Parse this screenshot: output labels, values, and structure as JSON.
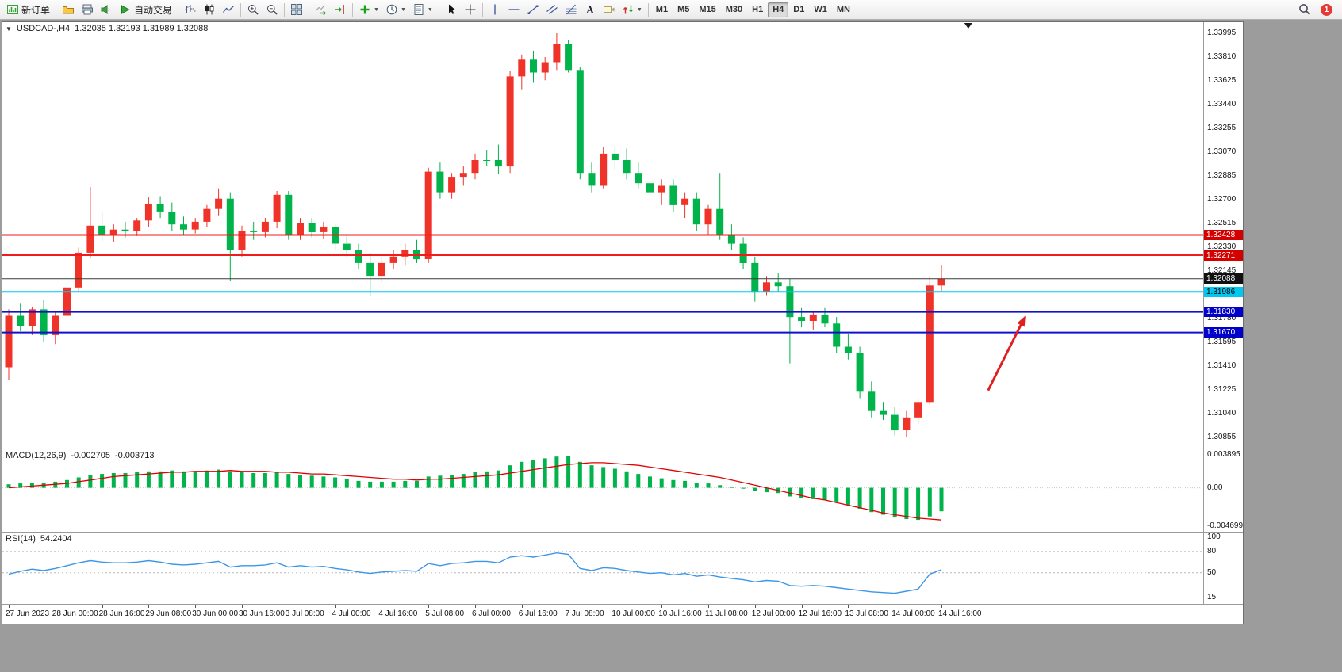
{
  "toolbar": {
    "groups": [
      [
        {
          "name": "new-order",
          "icon": "new_order",
          "label": "新订单"
        }
      ],
      [
        {
          "name": "profiles",
          "icon": "profiles"
        },
        {
          "name": "print",
          "icon": "print"
        },
        {
          "name": "alerts",
          "icon": "alerts"
        },
        {
          "name": "auto-trading",
          "icon": "auto_trading",
          "label": "自动交易"
        }
      ],
      [
        {
          "name": "bar-chart-mode",
          "icon": "bars"
        },
        {
          "name": "candlestick-mode",
          "icon": "candles"
        },
        {
          "name": "line-chart-mode",
          "icon": "linechart"
        }
      ],
      [
        {
          "name": "zoom-in",
          "icon": "zoom_in"
        },
        {
          "name": "zoom-out",
          "icon": "zoom_out"
        }
      ],
      [
        {
          "name": "tile-windows",
          "icon": "tile"
        }
      ],
      [
        {
          "name": "auto-scroll",
          "icon": "auto_scroll"
        },
        {
          "name": "chart-shift",
          "icon": "chart_shift"
        }
      ],
      [
        {
          "name": "indicators",
          "icon": "indicators",
          "dropdown": true
        },
        {
          "name": "periods",
          "icon": "clock",
          "dropdown": true
        },
        {
          "name": "templates",
          "icon": "template",
          "dropdown": true
        }
      ],
      [
        {
          "name": "cursor",
          "icon": "cursor"
        },
        {
          "name": "crosshair",
          "icon": "crosshair"
        }
      ],
      [
        {
          "name": "vertical-line",
          "icon": "vline"
        },
        {
          "name": "horizontal-line",
          "icon": "hline"
        },
        {
          "name": "trendline",
          "icon": "trendline"
        },
        {
          "name": "equidistant-channel",
          "icon": "channel"
        },
        {
          "name": "fibonacci",
          "icon": "fibo"
        },
        {
          "name": "text",
          "icon": "text"
        },
        {
          "name": "text-label",
          "icon": "label_icon"
        },
        {
          "name": "arrow-objects",
          "icon": "arrows",
          "dropdown": true
        }
      ]
    ],
    "timeframes": [
      "M1",
      "M5",
      "M15",
      "M30",
      "H1",
      "H4",
      "D1",
      "W1",
      "MN"
    ],
    "active_timeframe": "H4",
    "notification_badge": "1"
  },
  "chart": {
    "symbol_period": "USDCAD-,H4",
    "ohlc": "1.32035 1.32193 1.31989 1.32088"
  },
  "indicators": {
    "macd": {
      "name": "MACD(12,26,9)",
      "value_main": "-0.002705",
      "value_signal": "-0.003713"
    },
    "rsi": {
      "name": "RSI(14)",
      "value": "54.2404"
    }
  },
  "chart_data": {
    "type": "candlestick",
    "symbol": "USDCAD-",
    "timeframe": "H4",
    "current_bar": {
      "open": 1.32035,
      "high": 1.32193,
      "low": 1.31989,
      "close": 1.32088
    },
    "colors": {
      "up": "#f03328",
      "down": "#00b34a",
      "macd_hist": "#00b34a",
      "macd_signal": "#e00000",
      "rsi": "#3c96e8",
      "bid": "#3a3a3a",
      "resistance": "#ee1c1c",
      "support": "#1010d0",
      "pivot": "#00c8f0"
    },
    "price_axis": [
      "1.33995",
      "1.33810",
      "1.33625",
      "1.33440",
      "1.33255",
      "1.33070",
      "1.32885",
      "1.32700",
      "1.32515",
      "1.32330",
      "1.32145",
      "1.31960",
      "1.31780",
      "1.31595",
      "1.31410",
      "1.31225",
      "1.31040",
      "1.30855"
    ],
    "time_axis": [
      "27 Jun 2023",
      "28 Jun 00:00",
      "28 Jun 16:00",
      "29 Jun 08:00",
      "30 Jun 00:00",
      "30 Jun 16:00",
      "3 Jul 08:00",
      "4 Jul 00:00",
      "4 Jul 16:00",
      "5 Jul 08:00",
      "6 Jul 00:00",
      "6 Jul 16:00",
      "7 Jul 08:00",
      "10 Jul 00:00",
      "10 Jul 16:00",
      "11 Jul 08:00",
      "12 Jul 00:00",
      "12 Jul 16:00",
      "13 Jul 08:00",
      "14 Jul 00:00",
      "14 Jul 16:00"
    ],
    "candles": [
      [
        1.314,
        1.3185,
        1.313,
        1.318
      ],
      [
        1.318,
        1.319,
        1.3168,
        1.3172
      ],
      [
        1.3172,
        1.3187,
        1.3165,
        1.3185
      ],
      [
        1.3185,
        1.3192,
        1.316,
        1.3165
      ],
      [
        1.3165,
        1.3183,
        1.3158,
        1.318
      ],
      [
        1.318,
        1.3206,
        1.3178,
        1.3202
      ],
      [
        1.3202,
        1.3233,
        1.3199,
        1.3229
      ],
      [
        1.3229,
        1.328,
        1.3225,
        1.325
      ],
      [
        1.325,
        1.326,
        1.3238,
        1.3243
      ],
      [
        1.3243,
        1.3251,
        1.3237,
        1.3247
      ],
      [
        1.3247,
        1.3253,
        1.3241,
        1.3246
      ],
      [
        1.3246,
        1.3256,
        1.3242,
        1.3254
      ],
      [
        1.3254,
        1.3272,
        1.3249,
        1.3267
      ],
      [
        1.3267,
        1.3273,
        1.3256,
        1.3261
      ],
      [
        1.3261,
        1.3268,
        1.3246,
        1.3251
      ],
      [
        1.3251,
        1.3257,
        1.3243,
        1.3247
      ],
      [
        1.3247,
        1.3256,
        1.3244,
        1.3253
      ],
      [
        1.3253,
        1.3266,
        1.3249,
        1.3263
      ],
      [
        1.3263,
        1.3279,
        1.3258,
        1.3271
      ],
      [
        1.3271,
        1.3276,
        1.3207,
        1.3231
      ],
      [
        1.3231,
        1.325,
        1.3226,
        1.3246
      ],
      [
        1.3246,
        1.3253,
        1.3239,
        1.3245
      ],
      [
        1.3245,
        1.3256,
        1.3241,
        1.3253
      ],
      [
        1.3253,
        1.3277,
        1.3248,
        1.3274
      ],
      [
        1.3274,
        1.3277,
        1.3239,
        1.3243
      ],
      [
        1.3243,
        1.3256,
        1.3239,
        1.3252
      ],
      [
        1.3252,
        1.3256,
        1.3241,
        1.3245
      ],
      [
        1.3245,
        1.3253,
        1.324,
        1.3249
      ],
      [
        1.3249,
        1.3251,
        1.3231,
        1.3236
      ],
      [
        1.3236,
        1.3243,
        1.3226,
        1.3231
      ],
      [
        1.3231,
        1.3236,
        1.3216,
        1.3221
      ],
      [
        1.3221,
        1.3229,
        1.3195,
        1.3211
      ],
      [
        1.3211,
        1.3226,
        1.3206,
        1.3221
      ],
      [
        1.3221,
        1.3231,
        1.3216,
        1.3226
      ],
      [
        1.3226,
        1.3236,
        1.3219,
        1.3231
      ],
      [
        1.3231,
        1.3239,
        1.3221,
        1.3224
      ],
      [
        1.3224,
        1.3295,
        1.3221,
        1.3292
      ],
      [
        1.3292,
        1.3299,
        1.3271,
        1.3276
      ],
      [
        1.3276,
        1.3291,
        1.3271,
        1.3288
      ],
      [
        1.3288,
        1.3296,
        1.3281,
        1.3291
      ],
      [
        1.3291,
        1.3306,
        1.3286,
        1.3301
      ],
      [
        1.3301,
        1.3309,
        1.3296,
        1.3301
      ],
      [
        1.3301,
        1.3313,
        1.329,
        1.3296
      ],
      [
        1.3296,
        1.337,
        1.3291,
        1.3366
      ],
      [
        1.3366,
        1.3383,
        1.3356,
        1.3379
      ],
      [
        1.3379,
        1.3386,
        1.3361,
        1.3369
      ],
      [
        1.3369,
        1.3381,
        1.3363,
        1.3377
      ],
      [
        1.3377,
        1.33995,
        1.3371,
        1.3391
      ],
      [
        1.3391,
        1.3394,
        1.3369,
        1.3371
      ],
      [
        1.3371,
        1.3373,
        1.3286,
        1.3291
      ],
      [
        1.3291,
        1.3299,
        1.3276,
        1.3281
      ],
      [
        1.3281,
        1.3311,
        1.3279,
        1.3306
      ],
      [
        1.3306,
        1.3311,
        1.3293,
        1.3301
      ],
      [
        1.3301,
        1.331,
        1.3286,
        1.3291
      ],
      [
        1.3291,
        1.3299,
        1.3279,
        1.3283
      ],
      [
        1.3283,
        1.3291,
        1.3271,
        1.3276
      ],
      [
        1.3276,
        1.3286,
        1.3266,
        1.3281
      ],
      [
        1.3281,
        1.3286,
        1.3261,
        1.3266
      ],
      [
        1.3266,
        1.3276,
        1.3256,
        1.3271
      ],
      [
        1.3271,
        1.3276,
        1.3246,
        1.3251
      ],
      [
        1.3251,
        1.3266,
        1.3243,
        1.3263
      ],
      [
        1.3263,
        1.3291,
        1.3239,
        1.3243
      ],
      [
        1.3243,
        1.3251,
        1.3231,
        1.3236
      ],
      [
        1.3236,
        1.3241,
        1.3216,
        1.3221
      ],
      [
        1.3221,
        1.3226,
        1.3191,
        1.3199
      ],
      [
        1.3199,
        1.3211,
        1.3196,
        1.3206
      ],
      [
        1.3206,
        1.3213,
        1.3199,
        1.3203
      ],
      [
        1.3203,
        1.3209,
        1.3143,
        1.3179
      ],
      [
        1.3179,
        1.3186,
        1.3171,
        1.3176
      ],
      [
        1.3176,
        1.3183,
        1.3169,
        1.3181
      ],
      [
        1.3181,
        1.3186,
        1.3171,
        1.3174
      ],
      [
        1.3174,
        1.3179,
        1.3151,
        1.3156
      ],
      [
        1.3156,
        1.3166,
        1.3146,
        1.3151
      ],
      [
        1.3151,
        1.3156,
        1.3116,
        1.3121
      ],
      [
        1.3121,
        1.3129,
        1.3101,
        1.3106
      ],
      [
        1.3106,
        1.3113,
        1.3099,
        1.3103
      ],
      [
        1.3103,
        1.3109,
        1.3087,
        1.3091
      ],
      [
        1.3091,
        1.3106,
        1.3086,
        1.3101
      ],
      [
        1.3101,
        1.3116,
        1.3096,
        1.3113
      ],
      [
        1.3113,
        1.3211,
        1.3111,
        1.32035
      ],
      [
        1.32035,
        1.32193,
        1.31989,
        1.32088
      ]
    ],
    "hlines": [
      {
        "price": 1.32428,
        "label": "1.32428",
        "color": "#ee1c1c",
        "width": 2,
        "tag_bg": "#d40000",
        "tag_fg": "#ffffff"
      },
      {
        "price": 1.32271,
        "label": "1.32271",
        "color": "#ee1c1c",
        "width": 2,
        "tag_bg": "#d40000",
        "tag_fg": "#ffffff"
      },
      {
        "price": 1.31986,
        "label": "1.31986",
        "color": "#00c8f0",
        "width": 2,
        "tag_bg": "#00c8f0",
        "tag_fg": "#000000"
      },
      {
        "price": 1.3183,
        "label": "1.31830",
        "color": "#1010d0",
        "width": 2,
        "tag_bg": "#0000c8",
        "tag_fg": "#ffffff"
      },
      {
        "price": 1.3167,
        "label": "1.31670",
        "color": "#1010d0",
        "width": 2,
        "tag_bg": "#0000c8",
        "tag_fg": "#ffffff"
      }
    ],
    "bid": {
      "price": 1.32088,
      "label": "1.32088",
      "tag_bg": "#101010",
      "tag_fg": "#ffffff"
    },
    "arrow": {
      "tail": {
        "index": 84,
        "price": 1.3122
      },
      "head": {
        "index": 87.2,
        "price": 1.318
      },
      "color": "#e01f1f",
      "width": 3
    },
    "shift_marker_index": 82.3,
    "macd": {
      "axis": [
        "0.003895",
        "0.00",
        "-0.004699"
      ],
      "histogram": [
        0.0004,
        0.0005,
        0.0006,
        0.0006,
        0.0007,
        0.0009,
        0.0012,
        0.0015,
        0.0016,
        0.0017,
        0.0017,
        0.0018,
        0.0019,
        0.0019,
        0.002,
        0.0019,
        0.0019,
        0.002,
        0.0021,
        0.0019,
        0.0018,
        0.0017,
        0.0017,
        0.0018,
        0.0016,
        0.0015,
        0.0014,
        0.0013,
        0.0012,
        0.001,
        0.0008,
        0.0007,
        0.0007,
        0.0007,
        0.0008,
        0.0008,
        0.0013,
        0.0014,
        0.0015,
        0.0016,
        0.0018,
        0.0019,
        0.002,
        0.0026,
        0.003,
        0.0032,
        0.0034,
        0.0036,
        0.0037,
        0.003,
        0.0026,
        0.0024,
        0.0022,
        0.0019,
        0.0016,
        0.0013,
        0.0011,
        0.0009,
        0.0008,
        0.0006,
        0.0005,
        0.0003,
        0.0001,
        -0.0001,
        -0.0004,
        -0.0005,
        -0.0006,
        -0.001,
        -0.0012,
        -0.0013,
        -0.0014,
        -0.0016,
        -0.002,
        -0.0024,
        -0.0028,
        -0.0031,
        -0.0034,
        -0.0036,
        -0.0037,
        -0.0033,
        -0.002705
      ],
      "signal": [
        0.0,
        0.0001,
        0.0002,
        0.0003,
        0.0004,
        0.0005,
        0.0007,
        0.0009,
        0.0011,
        0.0013,
        0.0014,
        0.0015,
        0.0016,
        0.0017,
        0.0018,
        0.0018,
        0.0019,
        0.0019,
        0.0019,
        0.002,
        0.0019,
        0.0019,
        0.0019,
        0.0018,
        0.0018,
        0.0017,
        0.0016,
        0.0016,
        0.0015,
        0.0014,
        0.0013,
        0.0012,
        0.0011,
        0.001,
        0.001,
        0.0009,
        0.001,
        0.001,
        0.0011,
        0.0012,
        0.0013,
        0.0014,
        0.0015,
        0.0017,
        0.0019,
        0.0021,
        0.0023,
        0.0025,
        0.0027,
        0.0028,
        0.0029,
        0.0029,
        0.0028,
        0.0027,
        0.0026,
        0.0024,
        0.0022,
        0.002,
        0.0018,
        0.0016,
        0.0014,
        0.0012,
        0.0009,
        0.0006,
        0.0003,
        0.0,
        -0.0003,
        -0.0006,
        -0.0009,
        -0.0012,
        -0.0014,
        -0.0017,
        -0.002,
        -0.0023,
        -0.0026,
        -0.0029,
        -0.0031,
        -0.0033,
        -0.0035,
        -0.0036,
        -0.003713
      ]
    },
    "rsi": {
      "axis": [
        "100",
        "80",
        "50",
        "15"
      ],
      "levels": [
        80,
        50
      ],
      "values": [
        48,
        52,
        55,
        53,
        56,
        60,
        64,
        67,
        65,
        64,
        64,
        65,
        67,
        65,
        62,
        61,
        62,
        64,
        66,
        58,
        60,
        60,
        61,
        64,
        58,
        60,
        58,
        59,
        56,
        54,
        51,
        49,
        51,
        52,
        53,
        52,
        63,
        60,
        63,
        64,
        66,
        66,
        64,
        72,
        74,
        72,
        75,
        78,
        76,
        56,
        53,
        57,
        56,
        53,
        51,
        49,
        50,
        47,
        49,
        45,
        47,
        44,
        42,
        40,
        37,
        39,
        38,
        32,
        31,
        32,
        31,
        29,
        27,
        25,
        23,
        22,
        21,
        24,
        27,
        48,
        54.2404
      ]
    }
  }
}
